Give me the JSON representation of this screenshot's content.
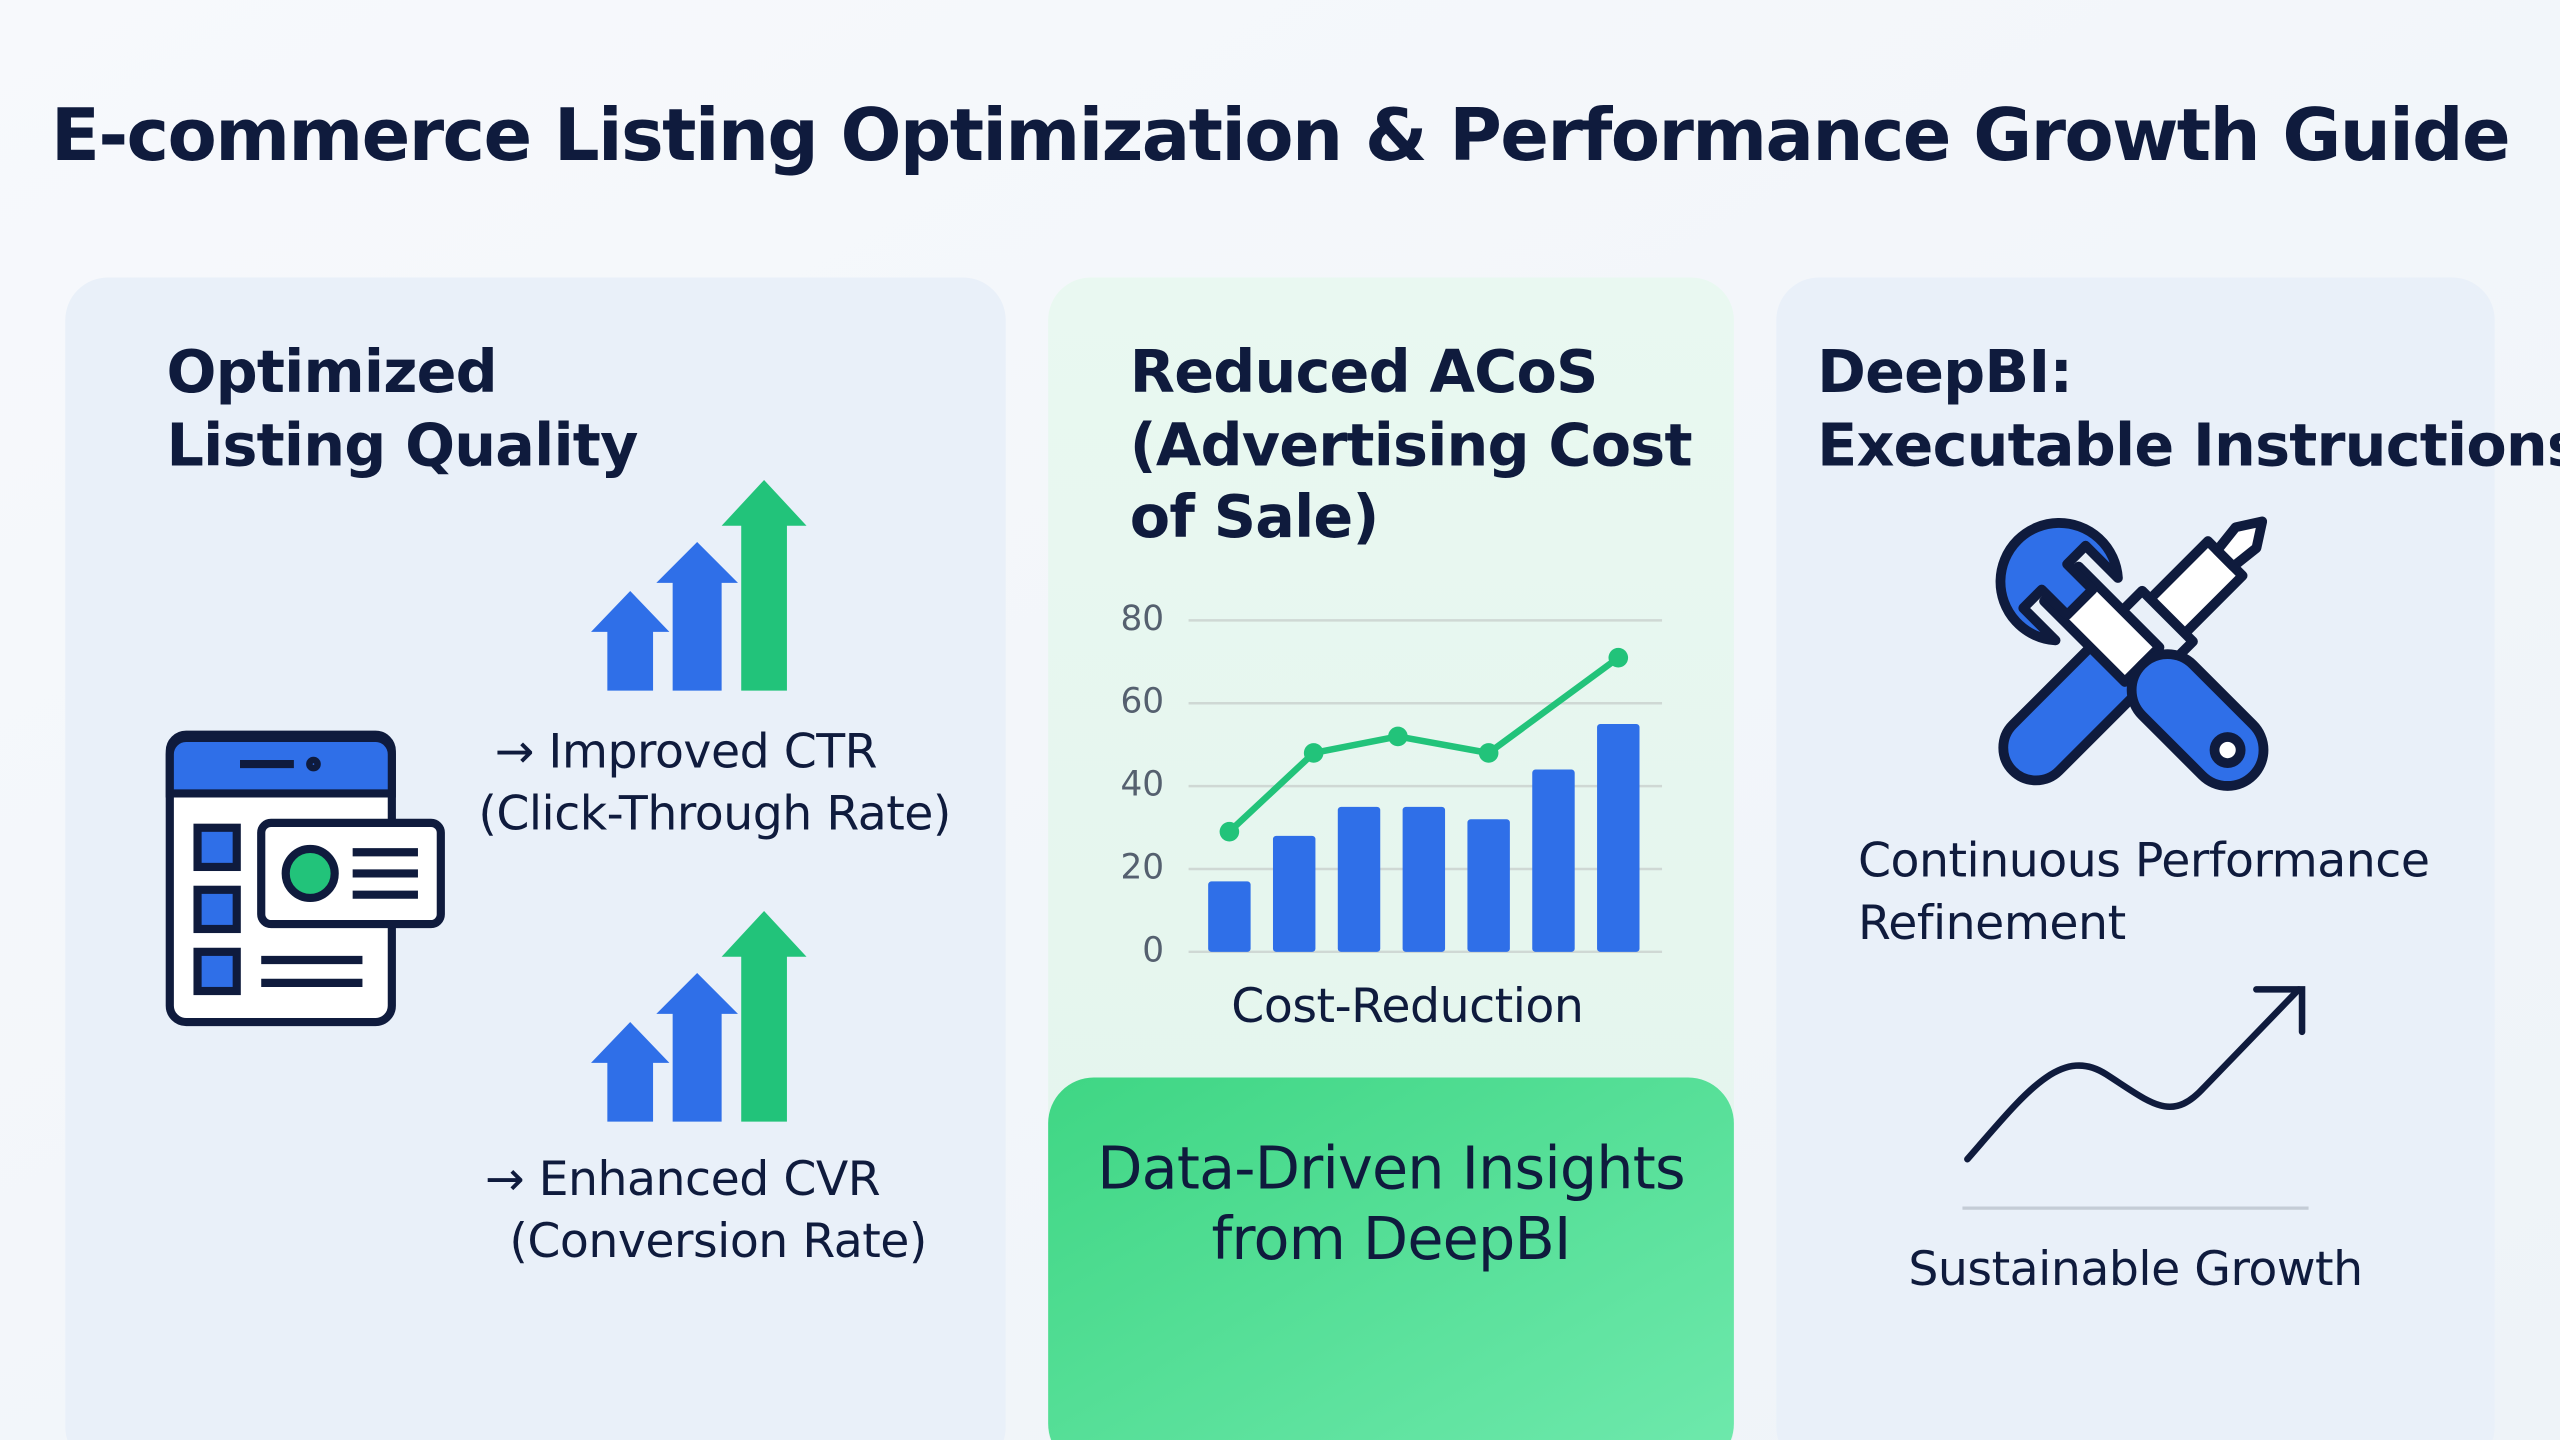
{
  "title": "E-commerce Listing Optimization & Performance Growth Guide",
  "panels": [
    {
      "heading": [
        "Optimized",
        "Listing Quality"
      ],
      "items": [
        {
          "label": "→ Improved CTR",
          "sublabel": "(Click-Through Rate)"
        },
        {
          "label": "→ Enhanced CVR",
          "sublabel": "(Conversion Rate)"
        }
      ]
    },
    {
      "heading": [
        "Reduced ACoS",
        "(Advertising Cost",
        "of Sale)"
      ],
      "chart": {
        "type": "bar-line",
        "bars": {
          "color": "#2f6fe8",
          "values": [
            17,
            28,
            35,
            35,
            32,
            44,
            55
          ]
        },
        "line": {
          "color": "#22c37a",
          "x": [
            0,
            1.3,
            2.6,
            4,
            6
          ],
          "values": [
            29,
            48,
            52,
            48,
            71
          ]
        },
        "ylim": [
          0,
          80
        ],
        "yticks": [
          0,
          20,
          40,
          60,
          80
        ],
        "grid": true,
        "xlabel": "Cost-Reduction"
      },
      "callout": [
        "Data-Driven Insights",
        "from DeepBI"
      ]
    },
    {
      "heading": [
        "DeepBI:",
        "Executable Instructions"
      ],
      "items": [
        {
          "label": "Continuous Performance",
          "sublabel": "Refinement"
        }
      ],
      "footer": "Sustainable Growth"
    }
  ]
}
